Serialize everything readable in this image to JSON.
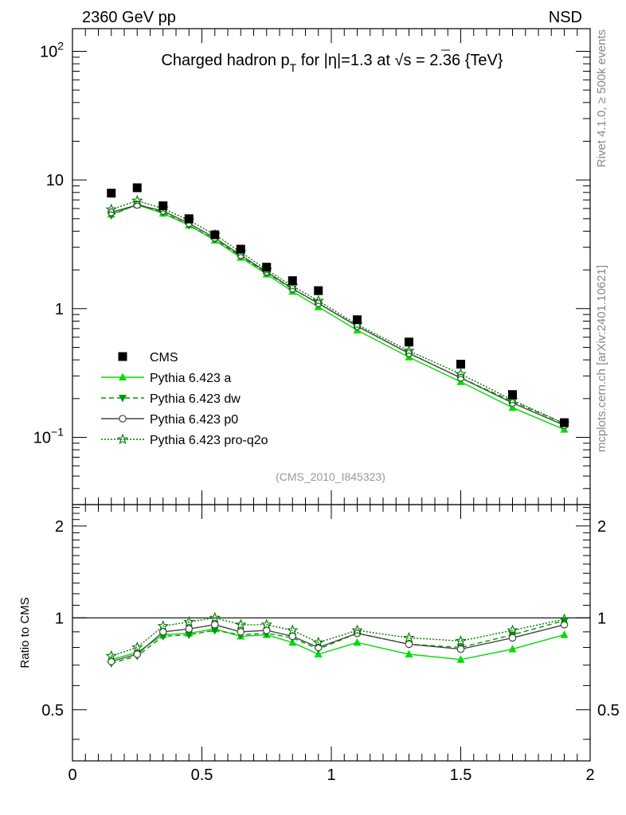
{
  "header": {
    "left_label": "2360 GeV pp",
    "right_label": "NSD"
  },
  "side_labels": {
    "rivet": "Rivet 4.1.0, ≥ 500k events",
    "mcplots": "mcplots.cern.ch [arXiv:2401.10621]"
  },
  "chart_data": {
    "type": "scatter",
    "title": "Charged hadron p_T for |η|=1.3 at √s = 2.36 {TeV}",
    "title_parts": {
      "a": "Charged hadron p",
      "sub": "T",
      "b": " for |η|=1.3 at ",
      "root": "√",
      "c": "s = 2.36 {TeV}"
    },
    "analysis_tag": "(CMS_2010_I845323)",
    "x": [
      0.15,
      0.25,
      0.35,
      0.45,
      0.55,
      0.65,
      0.75,
      0.85,
      0.95,
      1.1,
      1.3,
      1.5,
      1.7,
      1.9
    ],
    "xlim": [
      0,
      2
    ],
    "x_ticks": [
      "0",
      "0.5",
      "1",
      "1.5",
      "2"
    ],
    "x_tick_values": [
      0,
      0.5,
      1,
      1.5,
      2
    ],
    "main": {
      "yscale": "log",
      "ylim": [
        0.03,
        150
      ],
      "y_tick_values": [
        0.1,
        1,
        10,
        100
      ],
      "y_ticks": [
        "10",
        "1",
        "10",
        "10"
      ],
      "y_tick_sup": [
        "−1",
        "",
        "",
        "2"
      ],
      "legend_position": "lower-left",
      "series": [
        {
          "name": "CMS",
          "style": "data",
          "color": "#000000",
          "values": [
            7.9,
            8.7,
            6.3,
            5.0,
            3.75,
            2.9,
            2.1,
            1.65,
            1.38,
            0.82,
            0.55,
            0.37,
            0.215,
            0.13
          ]
        },
        {
          "name": "Pythia 6.423 a",
          "style": "solid",
          "marker": "triangle-up",
          "color": "#00dd00",
          "values": [
            5.4,
            6.4,
            5.5,
            4.45,
            3.4,
            2.5,
            1.85,
            1.36,
            1.03,
            0.68,
            0.42,
            0.27,
            0.17,
            0.115
          ]
        },
        {
          "name": "Pythia 6.423 dw",
          "style": "dashed",
          "marker": "triangle-down",
          "color": "#009900",
          "values": [
            5.3,
            6.5,
            5.6,
            4.45,
            3.45,
            2.55,
            1.9,
            1.42,
            1.1,
            0.73,
            0.45,
            0.29,
            0.19,
            0.128
          ]
        },
        {
          "name": "Pythia 6.423 p0",
          "style": "solid",
          "marker": "circle-open",
          "color": "#444444",
          "values": [
            5.6,
            6.4,
            5.75,
            4.6,
            3.55,
            2.6,
            1.93,
            1.43,
            1.1,
            0.73,
            0.45,
            0.29,
            0.185,
            0.124
          ]
        },
        {
          "name": "Pythia 6.423 pro-q2o",
          "style": "dotted",
          "marker": "star-open",
          "color": "#007700",
          "values": [
            5.9,
            6.9,
            6.0,
            4.85,
            3.75,
            2.75,
            2.0,
            1.5,
            1.15,
            0.75,
            0.47,
            0.31,
            0.195,
            0.128
          ]
        }
      ]
    },
    "ratio": {
      "ylabel": "Ratio to CMS",
      "ylim": [
        0.34,
        2.35
      ],
      "y_tick_values": [
        0.5,
        1,
        2
      ],
      "y_ticks": [
        "0.5",
        "1",
        "2"
      ],
      "reference_line": 1,
      "series": [
        {
          "name": "Pythia 6.423 a",
          "values": [
            0.73,
            0.77,
            0.88,
            0.89,
            0.92,
            0.87,
            0.88,
            0.83,
            0.76,
            0.83,
            0.76,
            0.73,
            0.79,
            0.88
          ]
        },
        {
          "name": "Pythia 6.423 dw",
          "values": [
            0.71,
            0.75,
            0.87,
            0.88,
            0.91,
            0.88,
            0.89,
            0.86,
            0.79,
            0.89,
            0.82,
            0.8,
            0.88,
            0.98
          ]
        },
        {
          "name": "Pythia 6.423 p0",
          "values": [
            0.72,
            0.76,
            0.9,
            0.92,
            0.95,
            0.9,
            0.91,
            0.87,
            0.8,
            0.89,
            0.82,
            0.79,
            0.86,
            0.95
          ]
        },
        {
          "name": "Pythia 6.423 pro-q2o",
          "values": [
            0.75,
            0.8,
            0.94,
            0.97,
            1.0,
            0.95,
            0.95,
            0.91,
            0.83,
            0.91,
            0.86,
            0.84,
            0.91,
            0.99
          ]
        }
      ]
    }
  }
}
